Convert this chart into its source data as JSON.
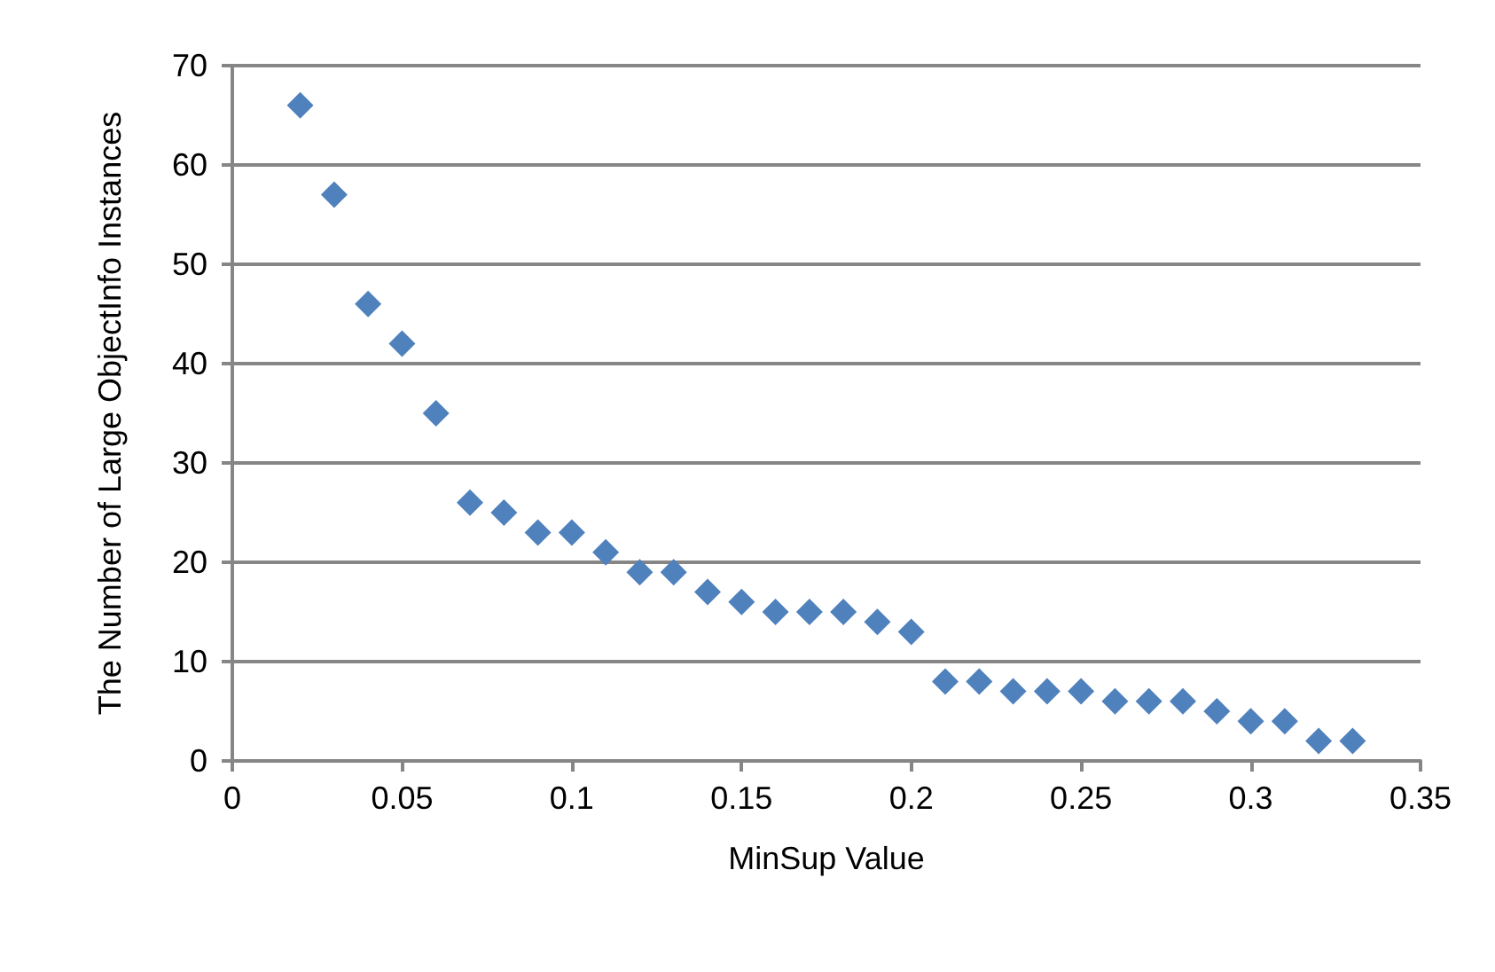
{
  "chart_data": {
    "type": "scatter",
    "xlabel": "MinSup Value",
    "ylabel": "The Number of Large ObjectInfo Instances",
    "x": [
      0.02,
      0.03,
      0.04,
      0.05,
      0.06,
      0.07,
      0.08,
      0.09,
      0.1,
      0.11,
      0.12,
      0.13,
      0.14,
      0.15,
      0.16,
      0.17,
      0.18,
      0.19,
      0.2,
      0.21,
      0.22,
      0.23,
      0.24,
      0.25,
      0.26,
      0.27,
      0.28,
      0.29,
      0.3,
      0.31,
      0.32,
      0.33
    ],
    "values": [
      66,
      57,
      46,
      42,
      35,
      26,
      25,
      23,
      23,
      21,
      19,
      19,
      17,
      16,
      15,
      15,
      15,
      14,
      13,
      8,
      8,
      7,
      7,
      7,
      6,
      6,
      6,
      5,
      4,
      4,
      2,
      2
    ],
    "color": "#4f81bd",
    "marker": "diamond",
    "grid": "y",
    "xlim": [
      0,
      0.35
    ],
    "xticks": [
      0,
      0.05,
      0.1,
      0.15,
      0.2,
      0.25,
      0.3,
      0.35
    ],
    "ylim": [
      0,
      70
    ],
    "yticks": [
      0,
      10,
      20,
      30,
      40,
      50,
      60,
      70
    ]
  }
}
